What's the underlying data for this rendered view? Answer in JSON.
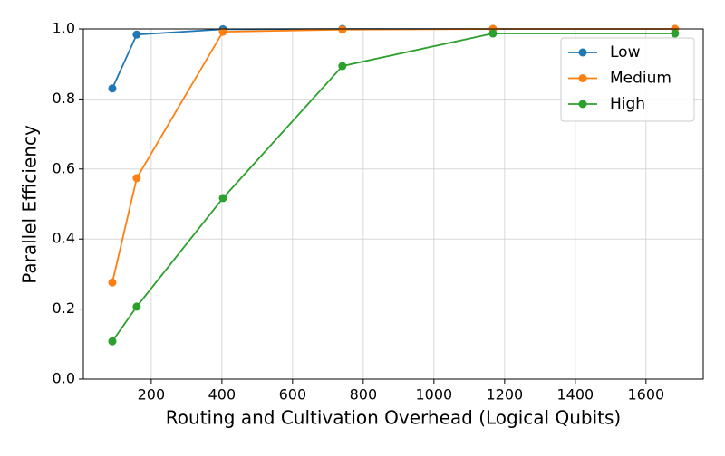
{
  "chart_data": {
    "type": "line",
    "x_label": "Routing and Cultivation Overhead (Logical Qubits)",
    "y_label": "Parallel Efficiency",
    "x": [
      90,
      159,
      403,
      741,
      1167,
      1682
    ],
    "series": [
      {
        "name": "Low",
        "color": "#1f77b4",
        "values": [
          0.83,
          0.984,
          0.999,
          1.0,
          1.0,
          1.0
        ]
      },
      {
        "name": "Medium",
        "color": "#ff7f0e",
        "values": [
          0.276,
          0.574,
          0.992,
          0.998,
          1.0,
          1.0
        ]
      },
      {
        "name": "High",
        "color": "#2ca02c",
        "values": [
          0.108,
          0.207,
          0.517,
          0.894,
          0.987,
          0.987
        ]
      }
    ],
    "xlim": [
      8,
      1762
    ],
    "ylim": [
      0,
      1
    ],
    "xticks": [
      200,
      400,
      600,
      800,
      1000,
      1200,
      1400,
      1600
    ],
    "yticks": [
      {
        "value": 0,
        "label": "0.0"
      },
      {
        "value": 0.2,
        "label": "0.2"
      },
      {
        "value": 0.4,
        "label": "0.4"
      },
      {
        "value": 0.6,
        "label": "0.6"
      },
      {
        "value": 0.8,
        "label": "0.8"
      },
      {
        "value": 1,
        "label": "1.0"
      }
    ],
    "grid": true,
    "legend": "upper-right"
  }
}
